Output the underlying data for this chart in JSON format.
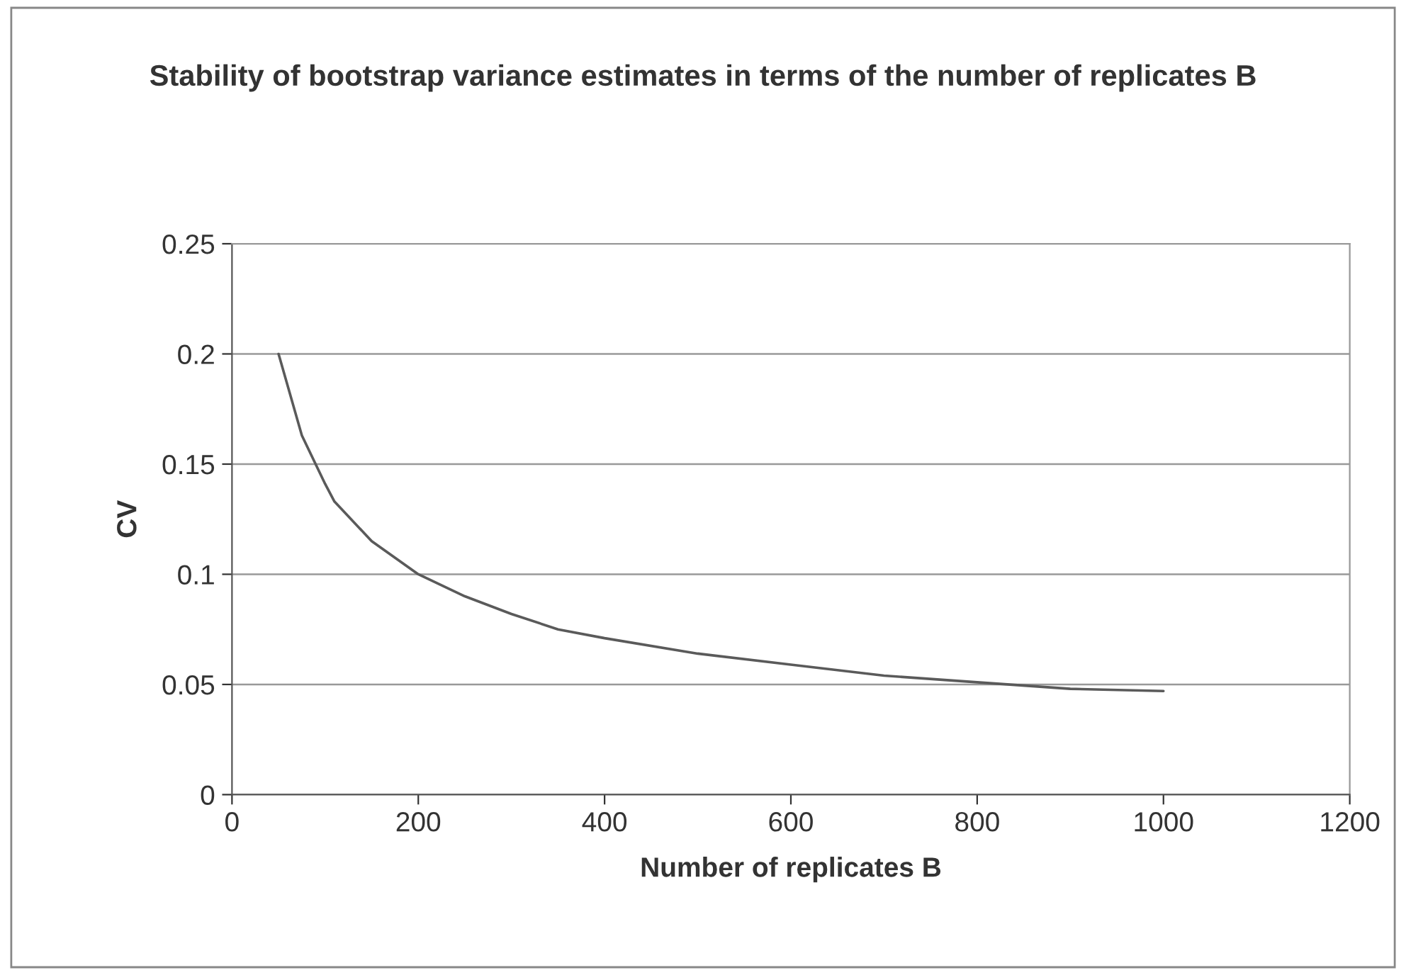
{
  "chart_data": {
    "type": "line",
    "title": "Stability of bootstrap variance estimates in terms of the number of replicates B",
    "xlabel": "Number of replicates B",
    "ylabel": "CV",
    "x": [
      50,
      75,
      100,
      110,
      150,
      200,
      250,
      300,
      350,
      400,
      500,
      600,
      700,
      800,
      900,
      1000
    ],
    "series": [
      {
        "color": "#5a5a5a",
        "values": [
          0.2,
          0.163,
          0.141,
          0.133,
          0.115,
          0.1,
          0.09,
          0.082,
          0.075,
          0.071,
          0.064,
          0.059,
          0.054,
          0.051,
          0.048,
          0.047
        ]
      }
    ],
    "xlim": [
      0,
      1200
    ],
    "xticks": [
      0,
      200,
      400,
      600,
      800,
      1000,
      1200
    ],
    "ylim": [
      0,
      0.25
    ],
    "yticks": [
      0,
      0.05,
      0.1,
      0.15,
      0.2,
      0.25
    ],
    "grid": "y",
    "legend": false,
    "marker": "none",
    "line_style": "solid"
  }
}
